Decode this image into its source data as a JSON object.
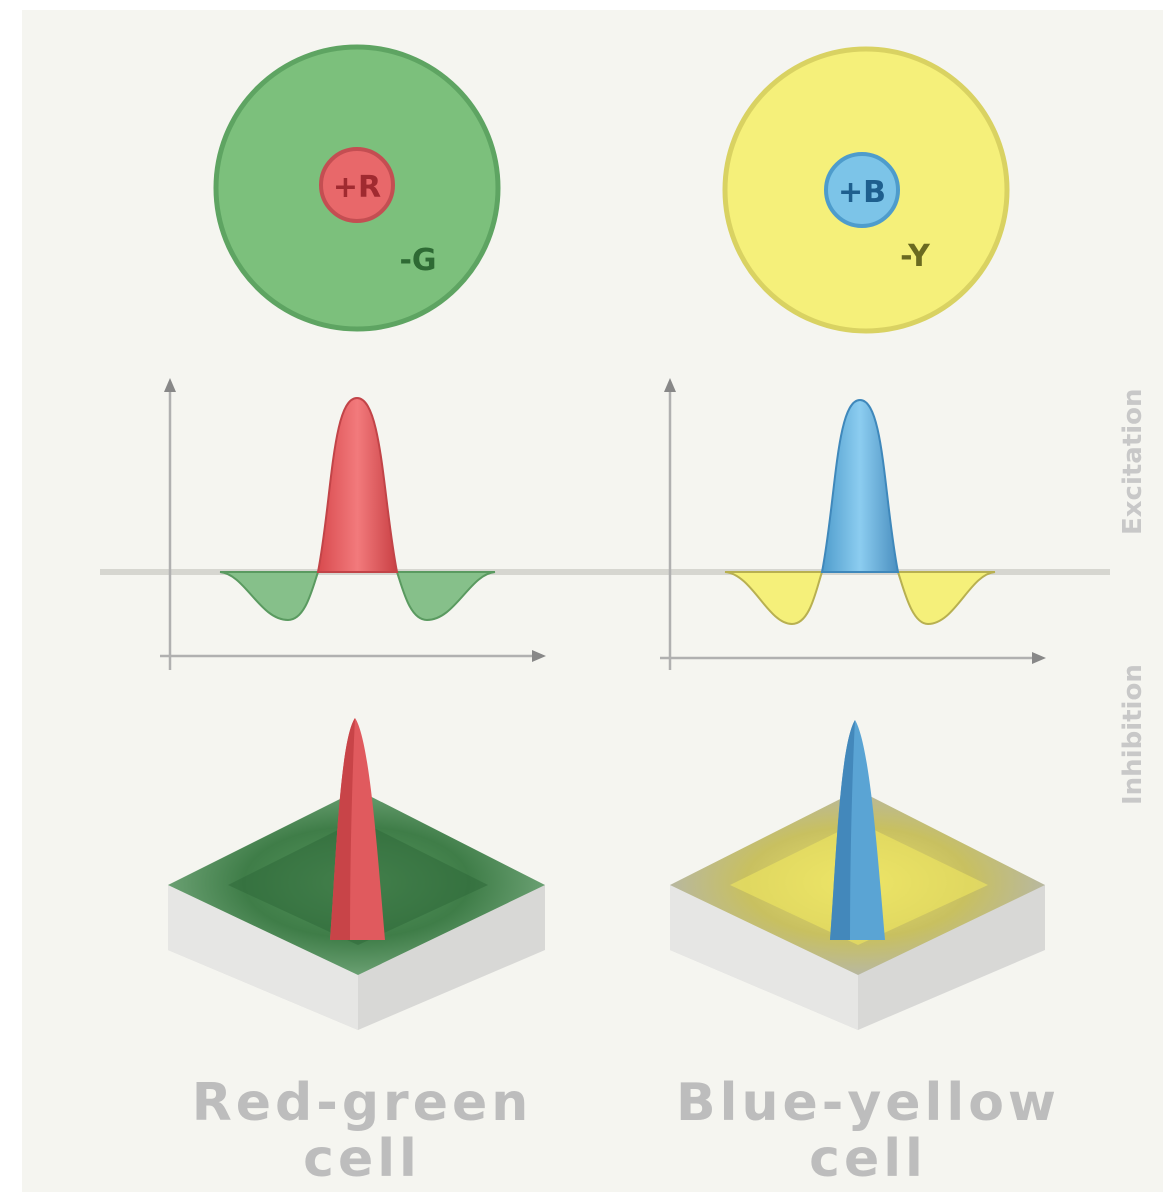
{
  "cells": [
    {
      "id": "red-green",
      "center_label": "+R",
      "surround_label": "-G",
      "center_color": "#e8686a",
      "surround_color": "#7cc07c",
      "caption_line1": "Red-green",
      "caption_line2": "cell"
    },
    {
      "id": "blue-yellow",
      "center_label": "+B",
      "surround_label": "-Y",
      "center_color": "#7cc4e8",
      "surround_color": "#f5f07a",
      "caption_line1": "Blue-yellow",
      "caption_line2": "cell"
    }
  ],
  "side_labels": {
    "excitation": "Excitation",
    "inhibition": "Inhibition"
  }
}
